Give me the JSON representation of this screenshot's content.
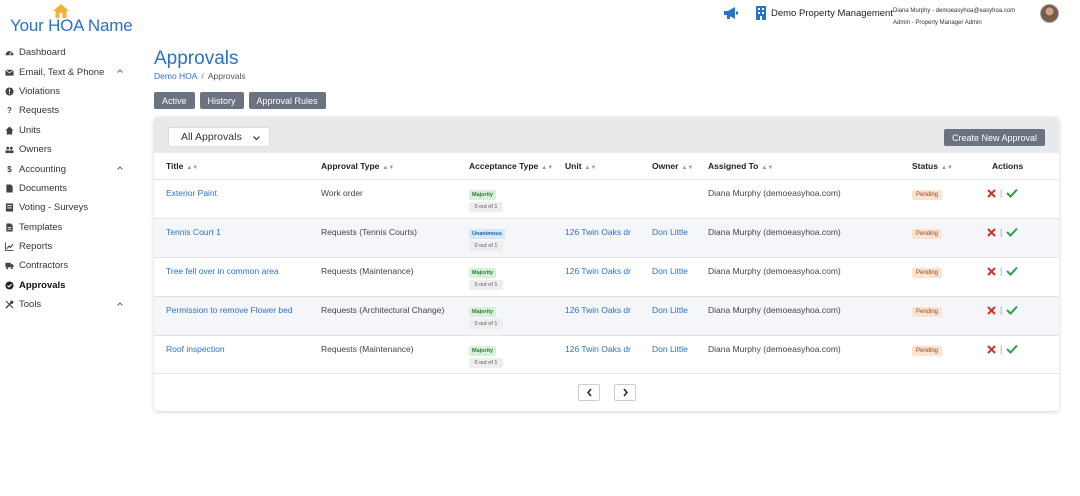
{
  "brand": {
    "logo_text": "Your HOA Name"
  },
  "topbar": {
    "company": "Demo Property Management",
    "user_line1": "Diana Murphy - demoeasyhoa@easyhoa.com",
    "user_line2": "Admin - Property Manager Admin"
  },
  "sidebar": {
    "items": [
      {
        "label": "Dashboard",
        "icon": "dashboard-icon"
      },
      {
        "label": "Email, Text & Phone",
        "icon": "envelope-icon",
        "expandable": true
      },
      {
        "label": "Violations",
        "icon": "exclamation-icon"
      },
      {
        "label": "Requests",
        "icon": "question-icon"
      },
      {
        "label": "Units",
        "icon": "home-icon"
      },
      {
        "label": "Owners",
        "icon": "users-icon"
      },
      {
        "label": "Accounting",
        "icon": "dollar-icon",
        "expandable": true
      },
      {
        "label": "Documents",
        "icon": "file-icon"
      },
      {
        "label": "Voting - Surveys",
        "icon": "ballot-icon"
      },
      {
        "label": "Templates",
        "icon": "template-icon"
      },
      {
        "label": "Reports",
        "icon": "chart-icon"
      },
      {
        "label": "Contractors",
        "icon": "truck-icon"
      },
      {
        "label": "Approvals",
        "icon": "check-circle-icon",
        "active": true
      },
      {
        "label": "Tools",
        "icon": "tools-icon",
        "expandable": true
      }
    ]
  },
  "page": {
    "title": "Approvals",
    "breadcrumb_root": "Demo HOA",
    "breadcrumb_sep": "/",
    "breadcrumb_current": "Approvals"
  },
  "tabs": [
    "Active",
    "History",
    "Approval Rules"
  ],
  "filter": {
    "selected": "All Approvals"
  },
  "create_button": "Create New Approval",
  "table": {
    "headers": [
      "Title",
      "Approval Type",
      "Acceptance Type",
      "Unit",
      "Owner",
      "Assigned To",
      "Status",
      "Actions"
    ],
    "rows": [
      {
        "title": "Exterior Paint",
        "type": "Work order",
        "acceptance": "Majority",
        "count": "0 out of 1",
        "unit": "",
        "owner": "",
        "assigned": "Diana Murphy (demoeasyhoa.com)",
        "status": "Pending"
      },
      {
        "title": "Tennis Court 1",
        "type": "Requests (Tennis Courts)",
        "acceptance": "Unanimous",
        "count": "0 out of 1",
        "unit": "126 Twin Oaks dr",
        "owner": "Don Little",
        "assigned": "Diana Murphy (demoeasyhoa.com)",
        "status": "Pending"
      },
      {
        "title": "Tree fell over in common area",
        "type": "Requests (Maintenance)",
        "acceptance": "Majority",
        "count": "0 out of 1",
        "unit": "126 Twin Oaks dr",
        "owner": "Don Little",
        "assigned": "Diana Murphy (demoeasyhoa.com)",
        "status": "Pending"
      },
      {
        "title": "Permission to remove Flower bed",
        "type": "Requests (Architectural Change)",
        "acceptance": "Majority",
        "count": "0 out of 1",
        "unit": "126 Twin Oaks dr",
        "owner": "Don Little",
        "assigned": "Diana Murphy (demoeasyhoa.com)",
        "status": "Pending"
      },
      {
        "title": "Roof inspection",
        "type": "Requests (Maintenance)",
        "acceptance": "Majority",
        "count": "0 out of 1",
        "unit": "126 Twin Oaks dr",
        "owner": "Don Little",
        "assigned": "Diana Murphy (demoeasyhoa.com)",
        "status": "Pending"
      }
    ],
    "action_separator": "|"
  },
  "colors": {
    "accent": "#2a72c8",
    "button": "#6b7280",
    "reject": "#d32f2f",
    "approve": "#2e9e4f"
  }
}
